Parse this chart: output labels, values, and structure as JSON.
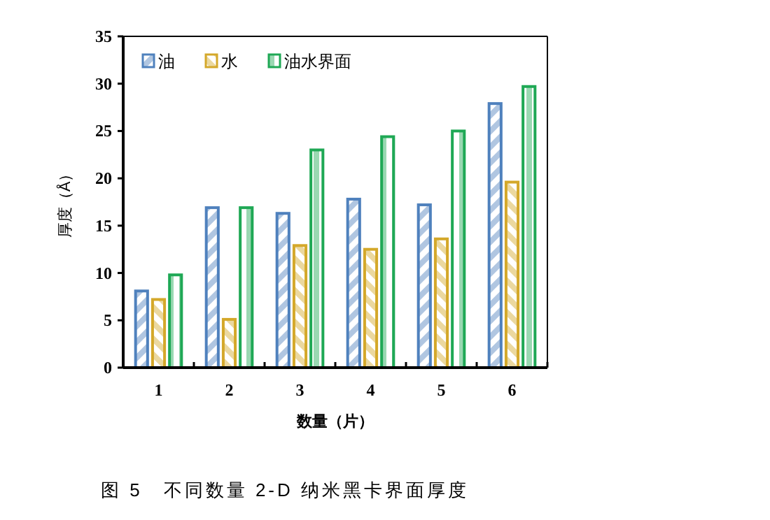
{
  "chart_data": {
    "type": "bar",
    "categories": [
      "1",
      "2",
      "3",
      "4",
      "5",
      "6"
    ],
    "series": [
      {
        "name": "油",
        "color": "#4f81bd",
        "values": [
          8.1,
          16.9,
          16.3,
          17.8,
          17.2,
          27.9
        ]
      },
      {
        "name": "水",
        "color": "#d4a82a",
        "values": [
          7.2,
          5.1,
          12.9,
          12.5,
          13.6,
          19.6
        ]
      },
      {
        "name": "油水界面",
        "color": "#1fa855",
        "values": [
          9.8,
          16.9,
          23.0,
          24.4,
          25.0,
          29.7
        ]
      }
    ],
    "xlabel": "数量（片）",
    "ylabel": "厚度（Å）",
    "ylim": [
      0,
      35
    ],
    "yticks": [
      0,
      5,
      10,
      15,
      20,
      25,
      30,
      35
    ],
    "legend": "top left",
    "grid": false,
    "annotations": [
      "图 5　不同数量 2-D 纳米黑卡界面厚度"
    ]
  }
}
